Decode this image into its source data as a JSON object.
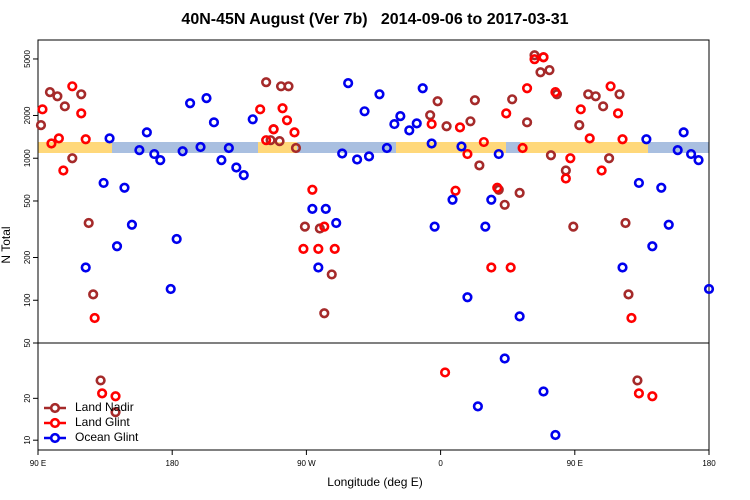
{
  "chart_data": {
    "type": "scatter",
    "title": "40N-45N August (Ver 7b)   2014-09-06 to 2017-03-31",
    "xlabel": "Longitude (deg E)",
    "ylabel": "N Total",
    "yscale": "log",
    "xlim": [
      90,
      540
    ],
    "xticks": [
      {
        "value": 90,
        "label": "90 E"
      },
      180,
      {
        "value": 270,
        "label": "90 W"
      },
      {
        "value": 360,
        "label": "0"
      },
      {
        "value": 450,
        "label": "90 E"
      },
      {
        "value": 540,
        "label": "180"
      }
    ],
    "ylim": [
      50,
      6800
    ],
    "yticks": [
      50,
      100,
      200,
      500,
      1000,
      2000,
      5000
    ],
    "y2lim": [
      8.5,
      50
    ],
    "y2ticks": [
      10,
      20
    ],
    "legend": "bottom-left",
    "series": [
      {
        "name": "Land Nadir",
        "color": "#a52a2a",
        "x": [
          92,
          98,
          103,
          108,
          113,
          119,
          124,
          127,
          243,
          248,
          253,
          258,
          246,
          252,
          263,
          269,
          279,
          282,
          287,
          353,
          358,
          364,
          380,
          386,
          383,
          399,
          403,
          408,
          413,
          418,
          423,
          429,
          427,
          433,
          438,
          434,
          444,
          449,
          453,
          459,
          464,
          469,
          473,
          480,
          484,
          486,
          132,
          142,
          492
        ],
        "values": [
          1710,
          2920,
          2730,
          2320,
          1000,
          2820,
          350,
          110,
          3430,
          1600,
          3210,
          3210,
          1340,
          1320,
          1180,
          330,
          320,
          81,
          152,
          2010,
          2520,
          1680,
          1820,
          890,
          2560,
          600,
          470,
          2600,
          570,
          1790,
          5310,
          5140,
          4030,
          4170,
          2820,
          1050,
          820,
          330,
          1710,
          2820,
          2730,
          2320,
          1000,
          2820,
          350,
          110,
          26.9,
          15.9,
          26.9
        ]
      },
      {
        "name": "Land Glint",
        "color": "#ff0000",
        "x": [
          93,
          99,
          104,
          107,
          113,
          119,
          122,
          128,
          133,
          142,
          239,
          243,
          248,
          254,
          257,
          262,
          274,
          268,
          278,
          282,
          289,
          363,
          370,
          354,
          373,
          378,
          389,
          394,
          398,
          407,
          404,
          415,
          418,
          423,
          429,
          437,
          444,
          447,
          454,
          460,
          468,
          474,
          479,
          482,
          488,
          493,
          502
        ],
        "values": [
          2210,
          1270,
          1380,
          820,
          3210,
          2070,
          1360,
          75,
          21.7,
          20.7,
          2210,
          1340,
          1600,
          2250,
          1850,
          1520,
          600,
          230,
          230,
          330,
          230,
          30.7,
          590,
          1740,
          1650,
          1070,
          1300,
          170,
          620,
          170,
          2070,
          1180,
          3110,
          4980,
          5140,
          2920,
          720,
          1000,
          2210,
          1380,
          820,
          3210,
          2070,
          1360,
          75,
          21.7,
          20.7
        ]
      },
      {
        "name": "Ocean Glint",
        "color": "#0000ee",
        "x": [
          138,
          122,
          134,
          148,
          143,
          153,
          163,
          158,
          168,
          172,
          179,
          183,
          187,
          192,
          199,
          203,
          208,
          213,
          218,
          223,
          228,
          234,
          274,
          278,
          283,
          290,
          294,
          298,
          304,
          309,
          312,
          319,
          324,
          329,
          333,
          339,
          344,
          348,
          354,
          356,
          368,
          374,
          378,
          390,
          394,
          399,
          413,
          385,
          403,
          429,
          437,
          498,
          493,
          502,
          508,
          513,
          519,
          523,
          528,
          533,
          540,
          482
        ],
        "values": [
          1380,
          170,
          670,
          620,
          240,
          340,
          1520,
          1140,
          1070,
          970,
          120,
          270,
          1120,
          2440,
          1200,
          2650,
          1790,
          970,
          1180,
          860,
          760,
          1880,
          440,
          170,
          440,
          350,
          1080,
          3380,
          980,
          2140,
          1030,
          2820,
          1180,
          1740,
          1980,
          1570,
          1760,
          3110,
          1270,
          330,
          510,
          1210,
          105,
          330,
          510,
          1070,
          77,
          17.5,
          38.7,
          22.4,
          10.9,
          1360,
          670,
          240,
          620,
          340,
          1140,
          1520,
          1070,
          970,
          120,
          170
        ]
      }
    ]
  }
}
